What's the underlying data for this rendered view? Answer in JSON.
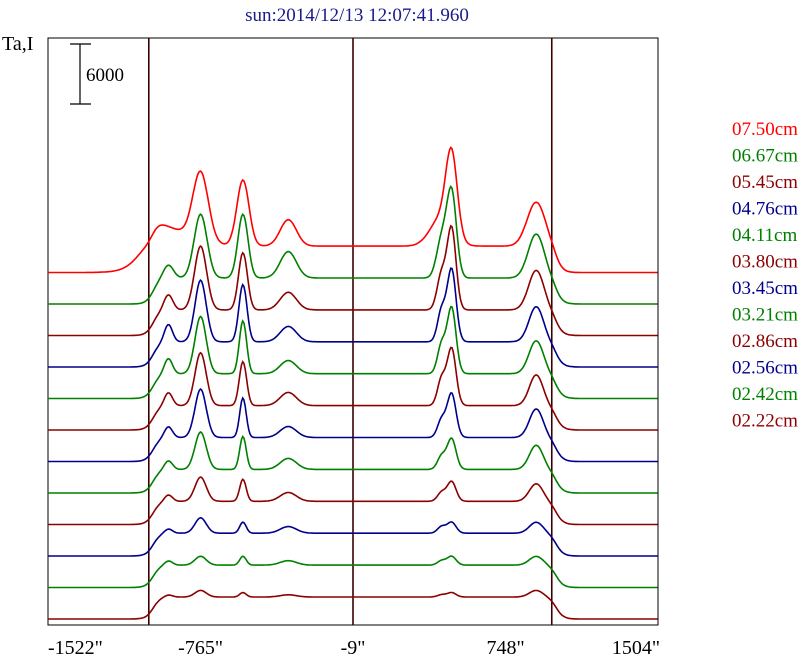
{
  "chart_data": {
    "type": "line",
    "title": "sun:2014/12/13 12:07:41.960",
    "ylabel": "Ta,I",
    "scale_bar_label": "6000",
    "scale_bar_value": 6000,
    "x_ticks": [
      {
        "value": -1522,
        "label": "-1522\""
      },
      {
        "value": -765,
        "label": "-765\""
      },
      {
        "value": -9,
        "label": "-9\""
      },
      {
        "value": 748,
        "label": "748\""
      },
      {
        "value": 1504,
        "label": "1504\""
      }
    ],
    "xlim": [
      -1522,
      1504
    ],
    "vertical_markers": [
      -1022,
      -9,
      977
    ],
    "grid": false,
    "legend_position": "right",
    "series": [
      {
        "name": "07.50cm",
        "color": "#ff0000",
        "baseline": 0,
        "peaks": [
          [
            -1022,
            0.6,
            60
          ],
          [
            -925,
            0.75,
            120
          ],
          [
            -765,
            3.1,
            38
          ],
          [
            -555,
            3.0,
            30
          ],
          [
            -330,
            1.2,
            40
          ],
          [
            430,
            1.3,
            55
          ],
          [
            480,
            3.6,
            28
          ],
          [
            900,
            2.0,
            45
          ]
        ]
      },
      {
        "name": "06.67cm",
        "color": "#008000",
        "baseline": 0,
        "peaks": [
          [
            -925,
            0.6,
            25
          ],
          [
            -765,
            2.9,
            32
          ],
          [
            -555,
            2.9,
            25
          ],
          [
            -330,
            1.2,
            40
          ],
          [
            430,
            1.7,
            25
          ],
          [
            480,
            3.9,
            24
          ],
          [
            900,
            2.0,
            40
          ]
        ]
      },
      {
        "name": "05.45cm",
        "color": "#8b0000",
        "baseline": 0,
        "peaks": [
          [
            -925,
            0.7,
            22
          ],
          [
            -765,
            2.9,
            30
          ],
          [
            -555,
            2.6,
            22
          ],
          [
            -330,
            0.8,
            40
          ],
          [
            430,
            1.6,
            22
          ],
          [
            480,
            3.7,
            22
          ],
          [
            900,
            1.8,
            38
          ]
        ]
      },
      {
        "name": "04.76cm",
        "color": "#00008b",
        "baseline": 0,
        "peaks": [
          [
            -925,
            0.8,
            20
          ],
          [
            -765,
            2.8,
            28
          ],
          [
            -555,
            2.6,
            20
          ],
          [
            -330,
            0.7,
            40
          ],
          [
            430,
            1.4,
            20
          ],
          [
            480,
            3.3,
            22
          ],
          [
            900,
            1.6,
            36
          ]
        ]
      },
      {
        "name": "04.11cm",
        "color": "#008000",
        "baseline": 0,
        "peaks": [
          [
            -925,
            0.7,
            20
          ],
          [
            -765,
            2.6,
            28
          ],
          [
            -555,
            2.4,
            18
          ],
          [
            -330,
            0.6,
            40
          ],
          [
            430,
            1.3,
            20
          ],
          [
            480,
            3.0,
            22
          ],
          [
            900,
            1.5,
            36
          ]
        ]
      },
      {
        "name": "03.80cm",
        "color": "#8b0000",
        "baseline": 0,
        "peaks": [
          [
            -925,
            0.6,
            20
          ],
          [
            -765,
            2.4,
            28
          ],
          [
            -555,
            2.0,
            18
          ],
          [
            -330,
            0.6,
            40
          ],
          [
            430,
            1.2,
            20
          ],
          [
            480,
            2.6,
            22
          ],
          [
            900,
            1.4,
            34
          ]
        ]
      },
      {
        "name": "03.45cm",
        "color": "#00008b",
        "baseline": 0,
        "peaks": [
          [
            -925,
            0.5,
            20
          ],
          [
            -765,
            2.2,
            28
          ],
          [
            -555,
            1.8,
            16
          ],
          [
            -330,
            0.5,
            40
          ],
          [
            430,
            0.8,
            20
          ],
          [
            480,
            2.0,
            22
          ],
          [
            900,
            1.3,
            34
          ]
        ]
      },
      {
        "name": "03.21cm",
        "color": "#008000",
        "baseline": 0,
        "peaks": [
          [
            -925,
            0.4,
            20
          ],
          [
            -765,
            1.7,
            28
          ],
          [
            -555,
            1.5,
            16
          ],
          [
            -330,
            0.5,
            40
          ],
          [
            430,
            0.6,
            20
          ],
          [
            480,
            1.4,
            22
          ],
          [
            900,
            1.1,
            34
          ]
        ]
      },
      {
        "name": "02.86cm",
        "color": "#8b0000",
        "baseline": 0,
        "peaks": [
          [
            -925,
            0.3,
            20
          ],
          [
            -765,
            1.1,
            28
          ],
          [
            -555,
            1.0,
            16
          ],
          [
            -330,
            0.4,
            40
          ],
          [
            430,
            0.4,
            20
          ],
          [
            480,
            0.9,
            22
          ],
          [
            900,
            0.8,
            34
          ]
        ]
      },
      {
        "name": "02.56cm",
        "color": "#00008b",
        "baseline": 0,
        "peaks": [
          [
            -925,
            0.2,
            20
          ],
          [
            -765,
            0.7,
            28
          ],
          [
            -555,
            0.5,
            16
          ],
          [
            -330,
            0.3,
            40
          ],
          [
            430,
            0.3,
            20
          ],
          [
            480,
            0.5,
            22
          ],
          [
            900,
            0.5,
            34
          ]
        ]
      },
      {
        "name": "02.42cm",
        "color": "#008000",
        "baseline": 0,
        "peaks": [
          [
            -925,
            0.2,
            20
          ],
          [
            -765,
            0.4,
            28
          ],
          [
            -555,
            0.4,
            16
          ],
          [
            -330,
            0.2,
            40
          ],
          [
            430,
            0.2,
            20
          ],
          [
            480,
            0.4,
            22
          ],
          [
            900,
            0.4,
            34
          ]
        ]
      },
      {
        "name": "02.22cm",
        "color": "#8b0000",
        "baseline": 0,
        "peaks": [
          [
            -925,
            0.1,
            20
          ],
          [
            -765,
            0.3,
            28
          ],
          [
            -555,
            0.2,
            16
          ],
          [
            -330,
            0.1,
            40
          ],
          [
            430,
            0.1,
            20
          ],
          [
            480,
            0.2,
            22
          ],
          [
            900,
            0.3,
            34
          ]
        ]
      }
    ]
  }
}
